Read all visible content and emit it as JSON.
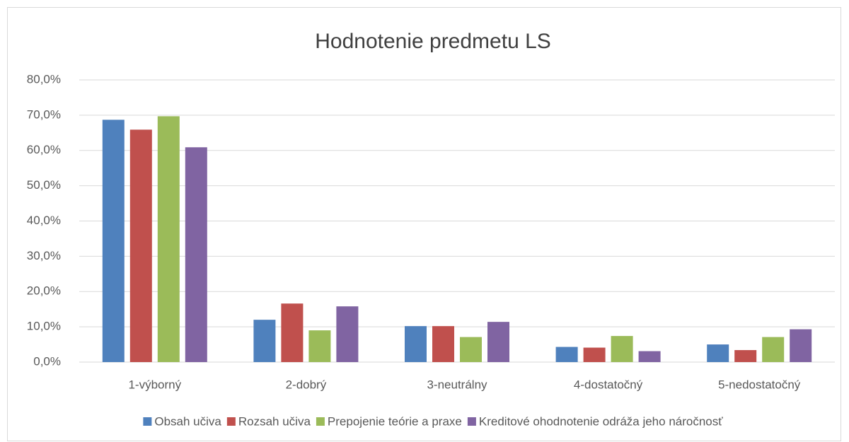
{
  "chart_data": {
    "type": "bar",
    "title": "Hodnotenie predmetu LS",
    "categories": [
      "1-výborný",
      "2-dobrý",
      "3-neutrálny",
      "4-dostatočný",
      "5-nedostatočný"
    ],
    "series": [
      {
        "name": "Obsah učiva",
        "color": "#4f81bd",
        "values": [
          68.7,
          12.0,
          10.2,
          4.3,
          5.0
        ]
      },
      {
        "name": "Rozsah učiva",
        "color": "#c0504d",
        "values": [
          65.9,
          16.6,
          10.2,
          4.1,
          3.4
        ]
      },
      {
        "name": "Prepojenie teórie a praxe",
        "color": "#9bbb59",
        "values": [
          69.7,
          9.0,
          7.1,
          7.4,
          7.1
        ]
      },
      {
        "name": "Kreditové ohodnotenie odráža jeho náročnosť",
        "color": "#8064a2",
        "values": [
          60.9,
          15.8,
          11.4,
          3.1,
          9.3
        ]
      }
    ],
    "ylim": [
      0,
      80
    ],
    "yticks": [
      {
        "value": 0,
        "label": "0,0%"
      },
      {
        "value": 10,
        "label": "10,0%"
      },
      {
        "value": 20,
        "label": "20,0%"
      },
      {
        "value": 30,
        "label": "30,0%"
      },
      {
        "value": 40,
        "label": "40,0%"
      },
      {
        "value": 50,
        "label": "50,0%"
      },
      {
        "value": 60,
        "label": "60,0%"
      },
      {
        "value": 70,
        "label": "70,0%"
      },
      {
        "value": 80,
        "label": "80,0%"
      }
    ],
    "grid": true,
    "legend": "bottom"
  }
}
